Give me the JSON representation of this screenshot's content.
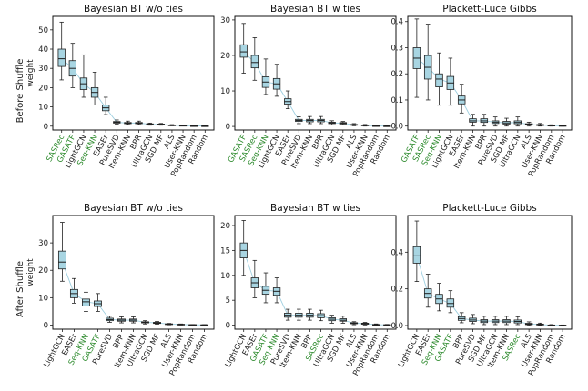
{
  "colors": {
    "box_fill": "#a8d5e2",
    "median_line": "#1f1f1f",
    "whisker": "#222222",
    "trend_line": "#9ecfe0",
    "label_default": "#222222",
    "label_highlight": "#2e8b2e"
  },
  "row_labels": [
    "Before Shuffle",
    "After Shuffle"
  ],
  "chart_data": [
    {
      "type": "box",
      "row": 0,
      "col": 0,
      "title": "Bayesian BT w/o ties",
      "ylabel": "weight",
      "ylim": [
        -2,
        57
      ],
      "yticks": [
        0,
        10,
        20,
        30,
        40,
        50
      ],
      "categories": [
        "SASRec",
        "GASATF",
        "LightGCN",
        "Seq-KNN",
        "EASEr",
        "PureSVD",
        "Item-KNN",
        "BPR",
        "UltraGCN",
        "SGD MF",
        "ALS",
        "User-KNN",
        "PopRandom",
        "Random"
      ],
      "highlighted": [
        "SASRec",
        "GASATF",
        "Seq-KNN"
      ],
      "boxes": [
        {
          "min": 24,
          "q1": 31,
          "median": 35,
          "q3": 40,
          "max": 54
        },
        {
          "min": 20,
          "q1": 26,
          "median": 30,
          "q3": 34,
          "max": 43
        },
        {
          "min": 15,
          "q1": 19,
          "median": 22,
          "q3": 25,
          "max": 37
        },
        {
          "min": 11,
          "q1": 15,
          "median": 17.5,
          "q3": 20,
          "max": 28
        },
        {
          "min": 6,
          "q1": 8,
          "median": 9.5,
          "q3": 11,
          "max": 15
        },
        {
          "min": 1,
          "q1": 1.6,
          "median": 2,
          "q3": 2.4,
          "max": 3.2
        },
        {
          "min": 0.8,
          "q1": 1.3,
          "median": 1.6,
          "q3": 1.9,
          "max": 2.6
        },
        {
          "min": 0.8,
          "q1": 1.3,
          "median": 1.6,
          "q3": 1.9,
          "max": 2.6
        },
        {
          "min": 0.5,
          "q1": 0.8,
          "median": 1,
          "q3": 1.2,
          "max": 1.6
        },
        {
          "min": 0.5,
          "q1": 0.8,
          "median": 0.9,
          "q3": 1.1,
          "max": 1.4
        },
        {
          "min": 0.2,
          "q1": 0.4,
          "median": 0.5,
          "q3": 0.6,
          "max": 0.8
        },
        {
          "min": 0.1,
          "q1": 0.2,
          "median": 0.3,
          "q3": 0.4,
          "max": 0.5
        },
        {
          "min": 0.05,
          "q1": 0.1,
          "median": 0.15,
          "q3": 0.2,
          "max": 0.3
        },
        {
          "min": 0,
          "q1": 0.05,
          "median": 0.1,
          "q3": 0.15,
          "max": 0.2
        }
      ]
    },
    {
      "type": "box",
      "row": 0,
      "col": 1,
      "title": "Bayesian BT w ties",
      "ylabel": "",
      "ylim": [
        -1,
        31
      ],
      "yticks": [
        0,
        10,
        20,
        30
      ],
      "categories": [
        "GASATF",
        "SASRec",
        "Seq-KNN",
        "LightGCN",
        "EASEr",
        "PureSVD",
        "Item-KNN",
        "BPR",
        "UltraGCN",
        "SGD MF",
        "ALS",
        "User-KNN",
        "PopRandom",
        "Random"
      ],
      "highlighted": [
        "GASATF",
        "SASRec",
        "Seq-KNN"
      ],
      "boxes": [
        {
          "min": 15,
          "q1": 19.5,
          "median": 21,
          "q3": 23,
          "max": 29
        },
        {
          "min": 13,
          "q1": 16.5,
          "median": 18,
          "q3": 20,
          "max": 25
        },
        {
          "min": 9,
          "q1": 11,
          "median": 12.5,
          "q3": 14,
          "max": 19
        },
        {
          "min": 8.5,
          "q1": 10.5,
          "median": 12,
          "q3": 13.5,
          "max": 17.5
        },
        {
          "min": 5,
          "q1": 6.3,
          "median": 7,
          "q3": 7.8,
          "max": 10
        },
        {
          "min": 0.8,
          "q1": 1.4,
          "median": 1.7,
          "q3": 2,
          "max": 2.7
        },
        {
          "min": 0.8,
          "q1": 1.3,
          "median": 1.7,
          "q3": 2,
          "max": 2.8
        },
        {
          "min": 0.8,
          "q1": 1.3,
          "median": 1.7,
          "q3": 2,
          "max": 2.8
        },
        {
          "min": 0.4,
          "q1": 0.8,
          "median": 1,
          "q3": 1.2,
          "max": 1.6
        },
        {
          "min": 0.4,
          "q1": 0.7,
          "median": 0.9,
          "q3": 1.1,
          "max": 1.4
        },
        {
          "min": 0.2,
          "q1": 0.35,
          "median": 0.45,
          "q3": 0.55,
          "max": 0.8
        },
        {
          "min": 0.1,
          "q1": 0.25,
          "median": 0.3,
          "q3": 0.4,
          "max": 0.55
        },
        {
          "min": 0.05,
          "q1": 0.1,
          "median": 0.15,
          "q3": 0.2,
          "max": 0.3
        },
        {
          "min": 0,
          "q1": 0.05,
          "median": 0.1,
          "q3": 0.15,
          "max": 0.2
        }
      ]
    },
    {
      "type": "box",
      "row": 0,
      "col": 2,
      "title": "Plackett-Luce Gibbs",
      "ylabel": "",
      "ylim": [
        -0.015,
        0.42
      ],
      "yticks": [
        0.0,
        0.1,
        0.2,
        0.3,
        0.4
      ],
      "tick_decimals": 1,
      "categories": [
        "GASATF",
        "SASRec",
        "Seq-KNN",
        "LightGCN",
        "EASEr",
        "Item-KNN",
        "BPR",
        "PureSVD",
        "SGD MF",
        "UltraGCN",
        "ALS",
        "User-KNN",
        "PopRandom",
        "Random"
      ],
      "highlighted": [
        "GASATF",
        "SASRec",
        "Seq-KNN"
      ],
      "boxes": [
        {
          "min": 0.11,
          "q1": 0.22,
          "median": 0.26,
          "q3": 0.3,
          "max": 0.41
        },
        {
          "min": 0.1,
          "q1": 0.18,
          "median": 0.225,
          "q3": 0.27,
          "max": 0.39
        },
        {
          "min": 0.08,
          "q1": 0.15,
          "median": 0.18,
          "q3": 0.2,
          "max": 0.28
        },
        {
          "min": 0.08,
          "q1": 0.14,
          "median": 0.165,
          "q3": 0.19,
          "max": 0.26
        },
        {
          "min": 0.05,
          "q1": 0.085,
          "median": 0.1,
          "q3": 0.115,
          "max": 0.16
        },
        {
          "min": 0.0,
          "q1": 0.015,
          "median": 0.02,
          "q3": 0.028,
          "max": 0.045
        },
        {
          "min": 0.0,
          "q1": 0.014,
          "median": 0.02,
          "q3": 0.028,
          "max": 0.045
        },
        {
          "min": 0.0,
          "q1": 0.01,
          "median": 0.015,
          "q3": 0.02,
          "max": 0.035
        },
        {
          "min": 0.0,
          "q1": 0.008,
          "median": 0.012,
          "q3": 0.018,
          "max": 0.03
        },
        {
          "min": 0.0,
          "q1": 0.009,
          "median": 0.014,
          "q3": 0.02,
          "max": 0.035
        },
        {
          "min": 0.0,
          "q1": 0.004,
          "median": 0.006,
          "q3": 0.009,
          "max": 0.015
        },
        {
          "min": 0.0,
          "q1": 0.002,
          "median": 0.004,
          "q3": 0.006,
          "max": 0.01
        },
        {
          "min": 0.0,
          "q1": 0.001,
          "median": 0.002,
          "q3": 0.003,
          "max": 0.005
        },
        {
          "min": 0.0,
          "q1": 0.0005,
          "median": 0.001,
          "q3": 0.002,
          "max": 0.003
        }
      ]
    },
    {
      "type": "box",
      "row": 1,
      "col": 0,
      "title": "Bayesian BT w/o ties",
      "ylabel": "weight",
      "ylim": [
        -1.5,
        40
      ],
      "yticks": [
        0,
        10,
        20,
        30
      ],
      "categories": [
        "LightGCN",
        "EASEr",
        "Seq-KNN",
        "GASATF",
        "PureSVD",
        "BPR",
        "Item-KNN",
        "UltraGCN",
        "SGD MF",
        "ALS",
        "User-KNN",
        "PopRandom",
        "Random"
      ],
      "highlighted": [
        "Seq-KNN",
        "GASATF"
      ],
      "boxes": [
        {
          "min": 16,
          "q1": 20.5,
          "median": 23,
          "q3": 27,
          "max": 37.5
        },
        {
          "min": 8,
          "q1": 10,
          "median": 11.5,
          "q3": 13,
          "max": 17
        },
        {
          "min": 5,
          "q1": 7,
          "median": 8.5,
          "q3": 9.5,
          "max": 12
        },
        {
          "min": 5,
          "q1": 6.8,
          "median": 7.8,
          "q3": 8.8,
          "max": 11.5
        },
        {
          "min": 1,
          "q1": 1.6,
          "median": 2,
          "q3": 2.5,
          "max": 3.2
        },
        {
          "min": 0.8,
          "q1": 1.4,
          "median": 1.8,
          "q3": 2.2,
          "max": 3
        },
        {
          "min": 0.8,
          "q1": 1.4,
          "median": 1.8,
          "q3": 2.2,
          "max": 3
        },
        {
          "min": 0.4,
          "q1": 0.8,
          "median": 1,
          "q3": 1.2,
          "max": 1.6
        },
        {
          "min": 0.3,
          "q1": 0.6,
          "median": 0.8,
          "q3": 1,
          "max": 1.3
        },
        {
          "min": 0.1,
          "q1": 0.25,
          "median": 0.35,
          "q3": 0.45,
          "max": 0.6
        },
        {
          "min": 0.05,
          "q1": 0.15,
          "median": 0.2,
          "q3": 0.3,
          "max": 0.4
        },
        {
          "min": 0,
          "q1": 0.05,
          "median": 0.1,
          "q3": 0.15,
          "max": 0.2
        },
        {
          "min": 0,
          "q1": 0.03,
          "median": 0.05,
          "q3": 0.1,
          "max": 0.15
        }
      ]
    },
    {
      "type": "box",
      "row": 1,
      "col": 1,
      "title": "Bayesian BT w ties",
      "ylabel": "",
      "ylim": [
        -0.8,
        22
      ],
      "yticks": [
        0,
        5,
        10,
        15,
        20
      ],
      "categories": [
        "LightGCN",
        "EASEr",
        "GASATF",
        "Seq-KNN",
        "PureSVD",
        "Item-KNN",
        "BPR",
        "SASRec",
        "UltraGCN",
        "SGD MF",
        "ALS",
        "User-KNN",
        "PopRandom",
        "Random"
      ],
      "highlighted": [
        "GASATF",
        "Seq-KNN",
        "SASRec"
      ],
      "boxes": [
        {
          "min": 10,
          "q1": 13.5,
          "median": 15,
          "q3": 16.5,
          "max": 21
        },
        {
          "min": 5.5,
          "q1": 7.5,
          "median": 8.5,
          "q3": 9.5,
          "max": 13
        },
        {
          "min": 4.5,
          "q1": 6.2,
          "median": 7,
          "q3": 7.8,
          "max": 10.5
        },
        {
          "min": 4.5,
          "q1": 6,
          "median": 6.8,
          "q3": 7.5,
          "max": 9.5
        },
        {
          "min": 1,
          "q1": 1.6,
          "median": 2,
          "q3": 2.4,
          "max": 3.2
        },
        {
          "min": 1,
          "q1": 1.6,
          "median": 2,
          "q3": 2.4,
          "max": 3.2
        },
        {
          "min": 1,
          "q1": 1.6,
          "median": 2,
          "q3": 2.4,
          "max": 3.2
        },
        {
          "min": 0.9,
          "q1": 1.5,
          "median": 1.9,
          "q3": 2.3,
          "max": 3
        },
        {
          "min": 0.4,
          "q1": 0.9,
          "median": 1.2,
          "q3": 1.5,
          "max": 2
        },
        {
          "min": 0.4,
          "q1": 0.8,
          "median": 1,
          "q3": 1.3,
          "max": 1.8
        },
        {
          "min": 0.1,
          "q1": 0.3,
          "median": 0.4,
          "q3": 0.5,
          "max": 0.7
        },
        {
          "min": 0.05,
          "q1": 0.2,
          "median": 0.3,
          "q3": 0.4,
          "max": 0.55
        },
        {
          "min": 0,
          "q1": 0.05,
          "median": 0.1,
          "q3": 0.15,
          "max": 0.25
        },
        {
          "min": 0,
          "q1": 0.03,
          "median": 0.05,
          "q3": 0.1,
          "max": 0.15
        }
      ]
    },
    {
      "type": "box",
      "row": 1,
      "col": 2,
      "title": "Plackett-Luce Gibbs",
      "ylabel": "",
      "ylim": [
        -0.02,
        0.6
      ],
      "yticks": [
        0.0,
        0.2,
        0.4
      ],
      "tick_decimals": 1,
      "categories": [
        "LightGCN",
        "EASEr",
        "Seq-KNN",
        "GASATF",
        "BPR",
        "PureSVD",
        "SGD MF",
        "UltraGCN",
        "Item-KNN",
        "SASRec",
        "ALS",
        "User-KNN",
        "PopRandom",
        "Random"
      ],
      "highlighted": [
        "Seq-KNN",
        "GASATF",
        "SASRec"
      ],
      "boxes": [
        {
          "min": 0.24,
          "q1": 0.34,
          "median": 0.38,
          "q3": 0.43,
          "max": 0.57
        },
        {
          "min": 0.1,
          "q1": 0.15,
          "median": 0.175,
          "q3": 0.2,
          "max": 0.28
        },
        {
          "min": 0.08,
          "q1": 0.12,
          "median": 0.145,
          "q3": 0.17,
          "max": 0.23
        },
        {
          "min": 0.07,
          "q1": 0.1,
          "median": 0.12,
          "q3": 0.145,
          "max": 0.19
        },
        {
          "min": 0.015,
          "q1": 0.028,
          "median": 0.038,
          "q3": 0.048,
          "max": 0.07
        },
        {
          "min": 0.01,
          "q1": 0.022,
          "median": 0.03,
          "q3": 0.04,
          "max": 0.06
        },
        {
          "min": 0.005,
          "q1": 0.016,
          "median": 0.024,
          "q3": 0.032,
          "max": 0.05
        },
        {
          "min": 0.005,
          "q1": 0.016,
          "median": 0.024,
          "q3": 0.032,
          "max": 0.05
        },
        {
          "min": 0.005,
          "q1": 0.016,
          "median": 0.024,
          "q3": 0.032,
          "max": 0.05
        },
        {
          "min": 0.005,
          "q1": 0.014,
          "median": 0.022,
          "q3": 0.03,
          "max": 0.048
        },
        {
          "min": 0.0,
          "q1": 0.005,
          "median": 0.008,
          "q3": 0.012,
          "max": 0.02
        },
        {
          "min": 0.0,
          "q1": 0.003,
          "median": 0.005,
          "q3": 0.008,
          "max": 0.013
        },
        {
          "min": 0.0,
          "q1": 0.001,
          "median": 0.002,
          "q3": 0.003,
          "max": 0.005
        },
        {
          "min": 0.0,
          "q1": 0.0005,
          "median": 0.001,
          "q3": 0.002,
          "max": 0.003
        }
      ]
    }
  ]
}
